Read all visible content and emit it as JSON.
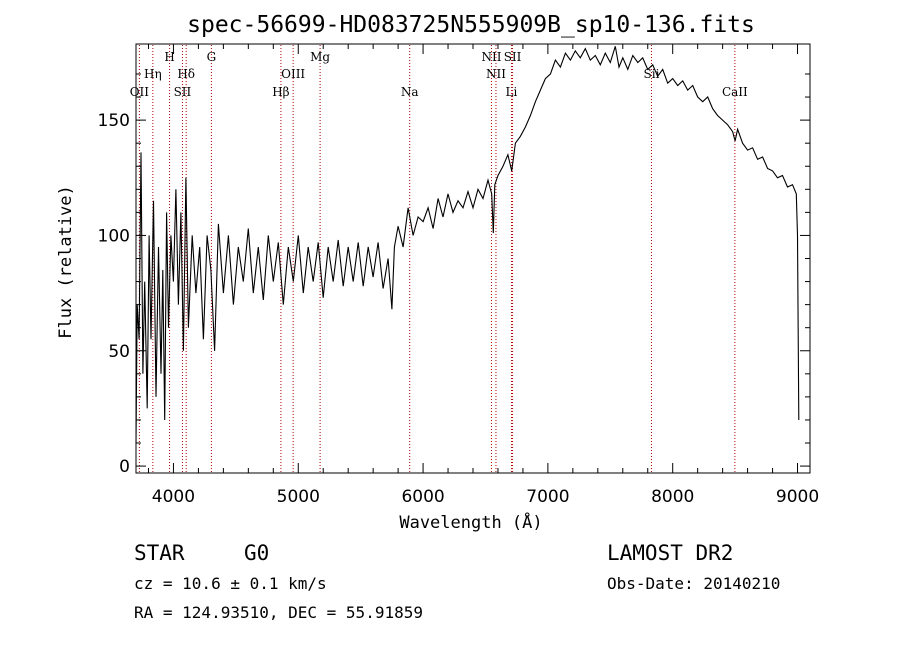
{
  "chart_data": {
    "type": "line",
    "title": "spec-56699-HD083725N555909B_sp10-136.fits",
    "xlabel": "Wavelength (Å)",
    "ylabel": "Flux (relative)",
    "xlim": [
      3700,
      9100
    ],
    "ylim": [
      -3,
      183
    ],
    "xticks": [
      4000,
      5000,
      6000,
      7000,
      8000,
      9000
    ],
    "yticks": [
      0,
      50,
      100,
      150
    ],
    "grid": false,
    "series": [
      {
        "values": [
          [
            3700,
            10
          ],
          [
            3710,
            70
          ],
          [
            3725,
            55
          ],
          [
            3740,
            136
          ],
          [
            3755,
            40
          ],
          [
            3770,
            80
          ],
          [
            3790,
            25
          ],
          [
            3805,
            100
          ],
          [
            3820,
            55
          ],
          [
            3840,
            115
          ],
          [
            3860,
            30
          ],
          [
            3880,
            95
          ],
          [
            3900,
            40
          ],
          [
            3915,
            85
          ],
          [
            3930,
            20
          ],
          [
            3945,
            110
          ],
          [
            3960,
            60
          ],
          [
            3980,
            100
          ],
          [
            4000,
            80
          ],
          [
            4020,
            120
          ],
          [
            4040,
            70
          ],
          [
            4060,
            110
          ],
          [
            4080,
            50
          ],
          [
            4100,
            125
          ],
          [
            4120,
            60
          ],
          [
            4150,
            100
          ],
          [
            4180,
            75
          ],
          [
            4210,
            95
          ],
          [
            4240,
            55
          ],
          [
            4270,
            100
          ],
          [
            4300,
            85
          ],
          [
            4330,
            50
          ],
          [
            4360,
            105
          ],
          [
            4400,
            75
          ],
          [
            4440,
            100
          ],
          [
            4480,
            70
          ],
          [
            4520,
            95
          ],
          [
            4560,
            80
          ],
          [
            4600,
            103
          ],
          [
            4640,
            75
          ],
          [
            4680,
            95
          ],
          [
            4720,
            72
          ],
          [
            4760,
            100
          ],
          [
            4800,
            80
          ],
          [
            4840,
            97
          ],
          [
            4880,
            70
          ],
          [
            4920,
            95
          ],
          [
            4960,
            80
          ],
          [
            5000,
            100
          ],
          [
            5040,
            75
          ],
          [
            5080,
            95
          ],
          [
            5120,
            80
          ],
          [
            5160,
            97
          ],
          [
            5200,
            73
          ],
          [
            5240,
            95
          ],
          [
            5280,
            80
          ],
          [
            5320,
            98
          ],
          [
            5360,
            78
          ],
          [
            5400,
            95
          ],
          [
            5440,
            80
          ],
          [
            5480,
            97
          ],
          [
            5520,
            78
          ],
          [
            5560,
            95
          ],
          [
            5600,
            82
          ],
          [
            5640,
            97
          ],
          [
            5680,
            77
          ],
          [
            5720,
            90
          ],
          [
            5750,
            68
          ],
          [
            5770,
            95
          ],
          [
            5800,
            104
          ],
          [
            5840,
            95
          ],
          [
            5880,
            112
          ],
          [
            5920,
            100
          ],
          [
            5960,
            108
          ],
          [
            6000,
            106
          ],
          [
            6040,
            112
          ],
          [
            6080,
            103
          ],
          [
            6120,
            116
          ],
          [
            6160,
            108
          ],
          [
            6200,
            118
          ],
          [
            6240,
            110
          ],
          [
            6280,
            115
          ],
          [
            6320,
            112
          ],
          [
            6360,
            119
          ],
          [
            6400,
            112
          ],
          [
            6440,
            120
          ],
          [
            6480,
            116
          ],
          [
            6520,
            124
          ],
          [
            6550,
            118
          ],
          [
            6563,
            101
          ],
          [
            6575,
            122
          ],
          [
            6600,
            126
          ],
          [
            6640,
            130
          ],
          [
            6680,
            135
          ],
          [
            6710,
            128
          ],
          [
            6740,
            140
          ],
          [
            6780,
            143
          ],
          [
            6820,
            147
          ],
          [
            6860,
            152
          ],
          [
            6900,
            158
          ],
          [
            6940,
            163
          ],
          [
            6980,
            168
          ],
          [
            7020,
            170
          ],
          [
            7060,
            176
          ],
          [
            7100,
            173
          ],
          [
            7140,
            179
          ],
          [
            7180,
            176
          ],
          [
            7220,
            180
          ],
          [
            7260,
            177
          ],
          [
            7300,
            181
          ],
          [
            7340,
            176
          ],
          [
            7380,
            178
          ],
          [
            7420,
            174
          ],
          [
            7460,
            179
          ],
          [
            7500,
            175
          ],
          [
            7540,
            182
          ],
          [
            7570,
            173
          ],
          [
            7600,
            177
          ],
          [
            7640,
            172
          ],
          [
            7680,
            178
          ],
          [
            7720,
            175
          ],
          [
            7760,
            177
          ],
          [
            7800,
            172
          ],
          [
            7840,
            174
          ],
          [
            7880,
            169
          ],
          [
            7920,
            172
          ],
          [
            7960,
            166
          ],
          [
            8000,
            168
          ],
          [
            8040,
            165
          ],
          [
            8080,
            167
          ],
          [
            8120,
            163
          ],
          [
            8160,
            165
          ],
          [
            8200,
            160
          ],
          [
            8240,
            158
          ],
          [
            8280,
            160
          ],
          [
            8320,
            155
          ],
          [
            8360,
            152
          ],
          [
            8400,
            150
          ],
          [
            8440,
            148
          ],
          [
            8480,
            145
          ],
          [
            8500,
            141
          ],
          [
            8520,
            146
          ],
          [
            8560,
            140
          ],
          [
            8600,
            137
          ],
          [
            8640,
            138
          ],
          [
            8680,
            133
          ],
          [
            8720,
            134
          ],
          [
            8760,
            129
          ],
          [
            8800,
            128
          ],
          [
            8840,
            125
          ],
          [
            8880,
            126
          ],
          [
            8920,
            121
          ],
          [
            8960,
            122
          ],
          [
            8990,
            118
          ],
          [
            9000,
            100
          ],
          [
            9010,
            20
          ]
        ]
      }
    ],
    "lines": [
      {
        "name": "OII",
        "x": 3727,
        "row": 3
      },
      {
        "name": "Hη",
        "x": 3835,
        "row": 2
      },
      {
        "name": "H",
        "x": 3969,
        "row": 1
      },
      {
        "name": "Hδ",
        "x": 4102,
        "row": 2
      },
      {
        "name": "SII",
        "x": 4072,
        "row": 3
      },
      {
        "name": "G",
        "x": 4304,
        "row": 1
      },
      {
        "name": "Hβ",
        "x": 4861,
        "row": 3
      },
      {
        "name": "OIII",
        "x": 4959,
        "row": 2
      },
      {
        "name": "Mg",
        "x": 5175,
        "row": 1
      },
      {
        "name": "Na",
        "x": 5893,
        "row": 3
      },
      {
        "name": "NII",
        "x": 6548,
        "row": 1
      },
      {
        "name": "NII",
        "x": 6584,
        "row": 2
      },
      {
        "name": "SII",
        "x": 6717,
        "row": 1
      },
      {
        "name": "Li",
        "x": 6708,
        "row": 3
      },
      {
        "name": "Sii",
        "x": 7830,
        "row": 2
      },
      {
        "name": "CaII",
        "x": 8498,
        "row": 3
      }
    ]
  },
  "footer": {
    "class_label": "STAR",
    "subclass": "G0",
    "survey": "LAMOST DR2",
    "redshift": "cz = 10.6 ± 0.1 km/s",
    "obs_date": "Obs-Date: 20140210",
    "coords": "RA = 124.93510, DEC =  55.91859"
  }
}
